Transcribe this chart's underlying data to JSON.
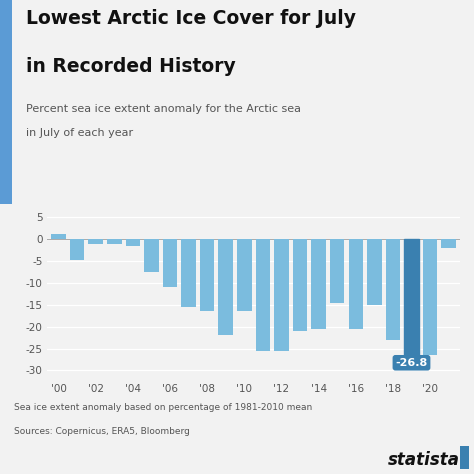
{
  "years": [
    2000,
    2001,
    2002,
    2003,
    2004,
    2005,
    2006,
    2007,
    2008,
    2009,
    2010,
    2011,
    2012,
    2013,
    2014,
    2015,
    2016,
    2017,
    2018,
    2019,
    2020,
    2021
  ],
  "values": [
    1.2,
    -4.8,
    -1.0,
    -1.2,
    -1.5,
    -7.5,
    -11.0,
    -15.5,
    -16.5,
    -22.0,
    -16.5,
    -25.5,
    -25.5,
    -21.0,
    -20.5,
    -14.5,
    -20.5,
    -15.0,
    -23.0,
    -26.8,
    -26.5,
    -2.0
  ],
  "bar_color": "#7bbcde",
  "highlight_year": 2019,
  "highlight_value": -26.8,
  "highlight_label": "-26.8",
  "highlight_color": "#3a80b0",
  "title_line1": "Lowest Arctic Ice Cover for July",
  "title_line2": "in Recorded History",
  "subtitle_line1": "Percent sea ice extent anomaly for the Arctic sea",
  "subtitle_line2": "in July of each year",
  "footnote1": "Sea ice extent anomaly based on percentage of 1981-2010 mean",
  "footnote2": "Sources: Copernicus, ERA5, Bloomberg",
  "ylim": [
    -32,
    7
  ],
  "yticks": [
    5,
    0,
    -5,
    -10,
    -15,
    -20,
    -25,
    -30
  ],
  "bg_color": "#f2f2f2",
  "title_color": "#111111",
  "title_bar_color": "#5b9bd5",
  "grid_color": "#ffffff",
  "tick_color": "#555555",
  "footnote_color": "#555555"
}
